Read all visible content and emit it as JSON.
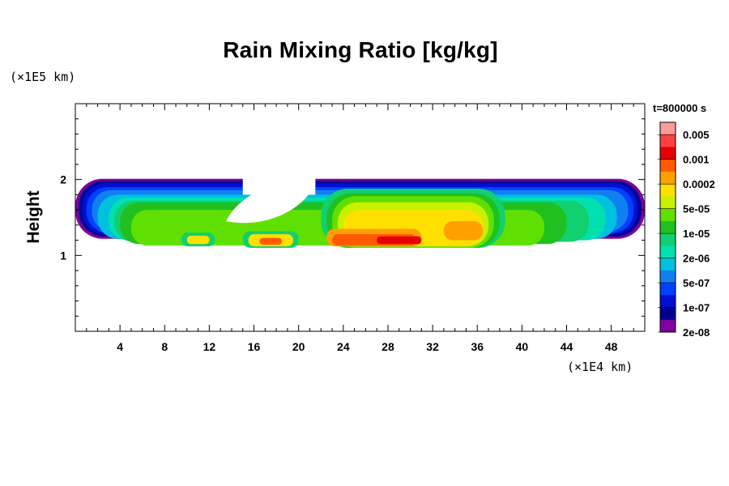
{
  "chart_data": {
    "type": "heatmap",
    "title": "Rain Mixing Ratio [kg/kg]",
    "xlabel": "",
    "ylabel": "Height",
    "x_unit_label": "(×1E4 km)",
    "y_unit_label": "(×1E5 km)",
    "time_label": "t=800000 s",
    "xlim": [
      0,
      51
    ],
    "ylim": [
      0,
      3
    ],
    "x_ticks": [
      4,
      8,
      12,
      16,
      20,
      24,
      28,
      32,
      36,
      40,
      44,
      48
    ],
    "y_ticks": [
      1,
      2
    ],
    "colorbar": {
      "levels": [
        "0.005",
        "0.001",
        "0.0002",
        "5e-05",
        "1e-05",
        "2e-06",
        "5e-07",
        "1e-07",
        "2e-08"
      ],
      "colors": [
        "#ff9a9a",
        "#ff4040",
        "#e60000",
        "#ff5a00",
        "#ffa000",
        "#ffe000",
        "#c8f000",
        "#60e000",
        "#20c020",
        "#10d070",
        "#00e0b0",
        "#00c0e0",
        "#1080f0",
        "#0040ff",
        "#0010d0",
        "#000090",
        "#8000a0"
      ]
    },
    "rain_layer": {
      "base_height": 1.1,
      "top_height": 2.0,
      "peak_x_range": [
        22,
        38
      ]
    }
  }
}
